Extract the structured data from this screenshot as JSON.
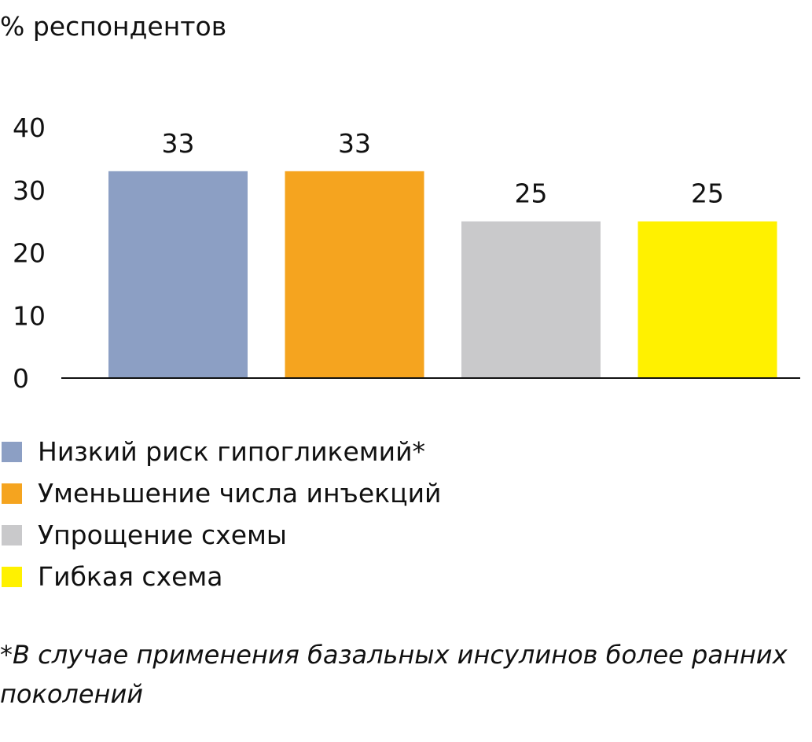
{
  "chart_data": {
    "type": "bar",
    "ylabel": "% респондентов",
    "ylim": [
      0,
      40
    ],
    "yticks": [
      0,
      10,
      20,
      30,
      40
    ],
    "categories": [
      "Низкий риск гипогликемий*",
      "Уменьшение числа инъекций",
      "Упрощение схемы",
      "Гибкая схема"
    ],
    "values": [
      33,
      33,
      25,
      25
    ],
    "value_labels": [
      "33",
      "33",
      "25",
      "25"
    ],
    "colors": [
      "#8c9fc4",
      "#f5a41f",
      "#c9c9cb",
      "#fff100"
    ],
    "grid": false,
    "legend": {
      "position": "bottom-left",
      "items": [
        {
          "label": "Низкий риск гипогликемий*",
          "color": "#8c9fc4"
        },
        {
          "label": "Уменьшение числа инъекций",
          "color": "#f5a41f"
        },
        {
          "label": "Упрощение схемы",
          "color": "#c9c9cb"
        },
        {
          "label": "Гибкая схема",
          "color": "#fff100"
        }
      ]
    },
    "footnote": {
      "line1": "*В случае применения базальных инсулинов более ранних",
      "line2": "поколений"
    }
  }
}
